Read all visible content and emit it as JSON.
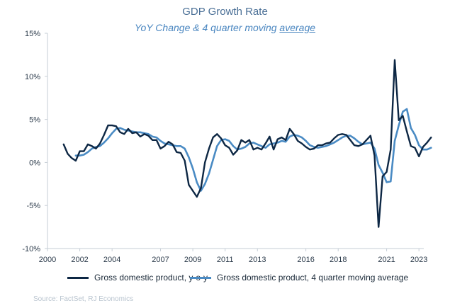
{
  "chart_data": {
    "type": "line",
    "title": "GDP Growth Rate",
    "subtitle_prefix": "YoY Change & 4 quarter moving ",
    "subtitle_underlined": "average",
    "xlabel": "",
    "ylabel": "",
    "xlim": [
      2000,
      2023.3
    ],
    "ylim": [
      -10,
      15
    ],
    "x_ticks": [
      2000,
      2002,
      2004,
      2007,
      2009,
      2011,
      2013,
      2016,
      2018,
      2021,
      2023
    ],
    "y_ticks": [
      {
        "value": 15,
        "label": "15%"
      },
      {
        "value": 10,
        "label": "10%"
      },
      {
        "value": 5,
        "label": "5%"
      },
      {
        "value": 0,
        "label": "0%"
      },
      {
        "value": -5,
        "label": "-5%"
      },
      {
        "value": -10,
        "label": "-10%"
      }
    ],
    "grid": false,
    "legend_position": "bottom",
    "series": [
      {
        "name": "Gross domestic product, y-o-y",
        "color": "#0d2744",
        "points": [
          [
            2001.0,
            2.1
          ],
          [
            2001.25,
            1.0
          ],
          [
            2001.5,
            0.5
          ],
          [
            2001.75,
            0.2
          ],
          [
            2002.0,
            1.3
          ],
          [
            2002.25,
            1.3
          ],
          [
            2002.5,
            2.1
          ],
          [
            2002.75,
            1.9
          ],
          [
            2003.0,
            1.6
          ],
          [
            2003.25,
            2.2
          ],
          [
            2003.5,
            3.2
          ],
          [
            2003.75,
            4.3
          ],
          [
            2004.0,
            4.3
          ],
          [
            2004.25,
            4.2
          ],
          [
            2004.5,
            3.5
          ],
          [
            2004.75,
            3.3
          ],
          [
            2005.0,
            3.9
          ],
          [
            2005.25,
            3.4
          ],
          [
            2005.5,
            3.5
          ],
          [
            2005.75,
            3.0
          ],
          [
            2006.0,
            3.3
          ],
          [
            2006.25,
            3.1
          ],
          [
            2006.5,
            2.6
          ],
          [
            2006.75,
            2.6
          ],
          [
            2007.0,
            1.6
          ],
          [
            2007.25,
            1.9
          ],
          [
            2007.5,
            2.4
          ],
          [
            2007.75,
            2.1
          ],
          [
            2008.0,
            1.2
          ],
          [
            2008.25,
            1.1
          ],
          [
            2008.5,
            0.2
          ],
          [
            2008.75,
            -2.6
          ],
          [
            2009.0,
            -3.3
          ],
          [
            2009.25,
            -4.0
          ],
          [
            2009.5,
            -3.0
          ],
          [
            2009.75,
            0.0
          ],
          [
            2010.0,
            1.6
          ],
          [
            2010.25,
            2.9
          ],
          [
            2010.5,
            3.3
          ],
          [
            2010.75,
            2.8
          ],
          [
            2011.0,
            2.0
          ],
          [
            2011.25,
            1.7
          ],
          [
            2011.5,
            0.9
          ],
          [
            2011.75,
            1.4
          ],
          [
            2012.0,
            2.6
          ],
          [
            2012.25,
            2.3
          ],
          [
            2012.5,
            2.6
          ],
          [
            2012.75,
            1.5
          ],
          [
            2013.0,
            1.7
          ],
          [
            2013.25,
            1.5
          ],
          [
            2013.5,
            2.2
          ],
          [
            2013.75,
            3.0
          ],
          [
            2014.0,
            1.5
          ],
          [
            2014.25,
            2.7
          ],
          [
            2014.5,
            2.9
          ],
          [
            2014.75,
            2.6
          ],
          [
            2015.0,
            3.9
          ],
          [
            2015.25,
            3.3
          ],
          [
            2015.5,
            2.5
          ],
          [
            2015.75,
            2.2
          ],
          [
            2016.0,
            1.8
          ],
          [
            2016.25,
            1.5
          ],
          [
            2016.5,
            1.6
          ],
          [
            2016.75,
            2.0
          ],
          [
            2017.0,
            2.0
          ],
          [
            2017.25,
            2.2
          ],
          [
            2017.5,
            2.3
          ],
          [
            2017.75,
            2.8
          ],
          [
            2018.0,
            3.2
          ],
          [
            2018.25,
            3.3
          ],
          [
            2018.5,
            3.2
          ],
          [
            2018.75,
            2.6
          ],
          [
            2019.0,
            2.0
          ],
          [
            2019.25,
            1.9
          ],
          [
            2019.5,
            2.1
          ],
          [
            2019.75,
            2.6
          ],
          [
            2020.0,
            3.1
          ],
          [
            2020.25,
            0.8
          ],
          [
            2020.5,
            -7.5
          ],
          [
            2020.75,
            -1.6
          ],
          [
            2021.0,
            -1.1
          ],
          [
            2021.25,
            1.5
          ],
          [
            2021.5,
            11.9
          ],
          [
            2021.75,
            4.9
          ],
          [
            2022.0,
            5.4
          ],
          [
            2022.25,
            3.6
          ],
          [
            2022.5,
            1.9
          ],
          [
            2022.75,
            1.7
          ],
          [
            2023.0,
            0.7
          ],
          [
            2023.25,
            1.8
          ],
          [
            2023.5,
            2.3
          ],
          [
            2023.75,
            2.9
          ]
        ]
      },
      {
        "name": "Gross domestic product, 4 quarter moving average",
        "color": "#4a8bc4",
        "points": [
          [
            2001.75,
            0.8
          ],
          [
            2002.0,
            0.8
          ],
          [
            2002.25,
            0.9
          ],
          [
            2002.5,
            1.2
          ],
          [
            2002.75,
            1.6
          ],
          [
            2003.0,
            1.8
          ],
          [
            2003.25,
            1.9
          ],
          [
            2003.5,
            2.3
          ],
          [
            2003.75,
            2.8
          ],
          [
            2004.0,
            3.4
          ],
          [
            2004.25,
            3.9
          ],
          [
            2004.5,
            4.0
          ],
          [
            2004.75,
            3.8
          ],
          [
            2005.0,
            3.7
          ],
          [
            2005.25,
            3.6
          ],
          [
            2005.5,
            3.5
          ],
          [
            2005.75,
            3.5
          ],
          [
            2006.0,
            3.4
          ],
          [
            2006.25,
            3.3
          ],
          [
            2006.5,
            3.0
          ],
          [
            2006.75,
            2.9
          ],
          [
            2007.0,
            2.5
          ],
          [
            2007.25,
            2.2
          ],
          [
            2007.5,
            2.1
          ],
          [
            2007.75,
            2.0
          ],
          [
            2008.0,
            1.9
          ],
          [
            2008.25,
            1.9
          ],
          [
            2008.5,
            1.6
          ],
          [
            2008.75,
            0.6
          ],
          [
            2009.0,
            -0.7
          ],
          [
            2009.25,
            -2.3
          ],
          [
            2009.5,
            -3.3
          ],
          [
            2009.75,
            -2.5
          ],
          [
            2010.0,
            -1.3
          ],
          [
            2010.25,
            0.3
          ],
          [
            2010.5,
            1.9
          ],
          [
            2010.75,
            2.6
          ],
          [
            2011.0,
            2.7
          ],
          [
            2011.25,
            2.5
          ],
          [
            2011.5,
            1.9
          ],
          [
            2011.75,
            1.5
          ],
          [
            2012.0,
            1.6
          ],
          [
            2012.25,
            1.8
          ],
          [
            2012.5,
            2.2
          ],
          [
            2012.75,
            2.3
          ],
          [
            2013.0,
            2.1
          ],
          [
            2013.25,
            1.9
          ],
          [
            2013.5,
            1.7
          ],
          [
            2013.75,
            2.1
          ],
          [
            2014.0,
            2.2
          ],
          [
            2014.25,
            2.3
          ],
          [
            2014.5,
            2.5
          ],
          [
            2014.75,
            2.4
          ],
          [
            2015.0,
            3.0
          ],
          [
            2015.25,
            3.2
          ],
          [
            2015.5,
            3.1
          ],
          [
            2015.75,
            2.9
          ],
          [
            2016.0,
            2.5
          ],
          [
            2016.25,
            2.0
          ],
          [
            2016.5,
            1.8
          ],
          [
            2016.75,
            1.7
          ],
          [
            2017.0,
            1.8
          ],
          [
            2017.25,
            1.9
          ],
          [
            2017.5,
            2.1
          ],
          [
            2017.75,
            2.3
          ],
          [
            2018.0,
            2.6
          ],
          [
            2018.25,
            2.9
          ],
          [
            2018.5,
            3.1
          ],
          [
            2018.75,
            3.1
          ],
          [
            2019.0,
            2.8
          ],
          [
            2019.25,
            2.4
          ],
          [
            2019.5,
            2.1
          ],
          [
            2019.75,
            2.2
          ],
          [
            2020.0,
            2.3
          ],
          [
            2020.25,
            1.6
          ],
          [
            2020.5,
            -0.3
          ],
          [
            2020.75,
            -1.2
          ],
          [
            2021.0,
            -2.3
          ],
          [
            2021.25,
            -2.2
          ],
          [
            2021.5,
            2.5
          ],
          [
            2021.75,
            4.3
          ],
          [
            2022.0,
            5.9
          ],
          [
            2022.25,
            6.2
          ],
          [
            2022.5,
            4.0
          ],
          [
            2022.75,
            3.2
          ],
          [
            2023.0,
            2.0
          ],
          [
            2023.25,
            1.5
          ],
          [
            2023.5,
            1.5
          ],
          [
            2023.75,
            1.7
          ]
        ]
      }
    ],
    "source": "Source: FactSet, RJ Economics"
  }
}
